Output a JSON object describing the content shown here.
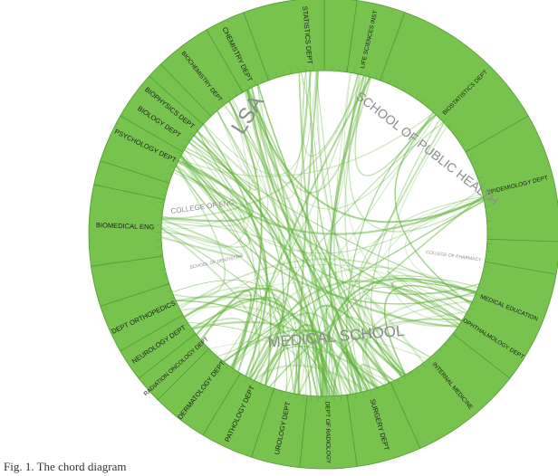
{
  "colors": {
    "ring": "#77c34e",
    "ring_edge": "#4f9a32",
    "chord": "#5db235",
    "inner_label": "#8c8c8c",
    "dept_label": "#1b1b1b"
  },
  "inner_labels": {
    "lsa": "LSA",
    "public_health": "SCHOOL OF PUBLIC HEALTH",
    "college_eng": "COLLEGE OF ENG",
    "medical_school": "MEDICAL SCHOOL",
    "dentistry": "SCHOOL OF DENTISTRY",
    "pharmacy": "COLLEGE OF PHARMACY"
  },
  "departments": [
    {
      "name": "STATISTICS DEPT",
      "mid": 355
    },
    {
      "name": "LIFE SCIENCES INST",
      "mid": 13
    },
    {
      "name": "CHEMISTRY DEPT",
      "mid": 334
    },
    {
      "name": "BIOCHEMISTRY DEPT",
      "mid": 322
    },
    {
      "name": "BIOSTATISTICS DEPT",
      "mid": 45
    },
    {
      "name": "EPIDEMIOLOGY DEPT",
      "mid": 76
    },
    {
      "name": "BIOPHYSICS DEPT",
      "mid": 309
    },
    {
      "name": "BIOLOGY DEPT",
      "mid": 304
    },
    {
      "name": "PSYCHOLOGY DEPT",
      "mid": 296
    },
    {
      "name": "BIOMEDICAL ENG",
      "mid": 272
    },
    {
      "name": "DEPT ORTHOPEDICS",
      "mid": 245
    },
    {
      "name": "NEUROLOGY DEPT",
      "mid": 236
    },
    {
      "name": "RADIATION ONCOLOGY DEPT",
      "mid": 228
    },
    {
      "name": "DERMATOLOGY DEPT",
      "mid": 218
    },
    {
      "name": "PATHOLOGY DEPT",
      "mid": 205
    },
    {
      "name": "UROLOGY DEPT",
      "mid": 192
    },
    {
      "name": "DEPT OF RADIOLOGY",
      "mid": 179
    },
    {
      "name": "SURGERY DEPT",
      "mid": 164
    },
    {
      "name": "INTERNAL MEDICINE",
      "mid": 140
    },
    {
      "name": "OPHTHALMOLOGY DEPT",
      "mid": 122
    },
    {
      "name": "MEDICAL EDUCATION",
      "mid": 112
    }
  ],
  "caption": "Fig. 1. The chord diagram"
}
